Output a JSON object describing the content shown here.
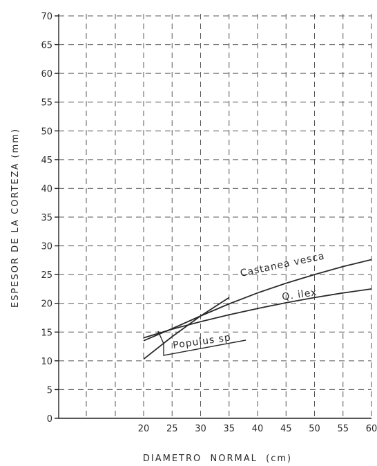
{
  "chart_data": {
    "type": "line",
    "title": "",
    "xlabel": "DIAMETRO  NORMAL  (cm)",
    "ylabel": "ESPESOR DE LA CORTEZA (mm)",
    "xlim": [
      0,
      60
    ],
    "ylim": [
      0,
      70
    ],
    "x_ticks": [
      20,
      25,
      30,
      35,
      40,
      45,
      50,
      55,
      60
    ],
    "y_ticks": [
      0,
      5,
      10,
      15,
      20,
      25,
      30,
      35,
      40,
      45,
      50,
      55,
      60,
      65,
      70
    ],
    "grid": true,
    "legend": "none",
    "series": [
      {
        "name": "Castanea vesca",
        "x": [
          20,
          25,
          30,
          35,
          40,
          45,
          50,
          55,
          60
        ],
        "y": [
          13.5,
          15.6,
          17.8,
          19.9,
          21.8,
          23.5,
          25.0,
          26.4,
          27.6
        ]
      },
      {
        "name": "Q. ilex",
        "x": [
          20,
          25,
          30,
          35,
          40,
          45,
          50,
          55,
          60
        ],
        "y": [
          14.0,
          15.5,
          16.8,
          18.0,
          19.1,
          20.1,
          21.0,
          21.8,
          22.5
        ]
      },
      {
        "name": "Populus sp",
        "x": [
          20,
          25,
          30,
          35
        ],
        "y": [
          10.3,
          14.2,
          17.8,
          21.0
        ]
      }
    ]
  }
}
